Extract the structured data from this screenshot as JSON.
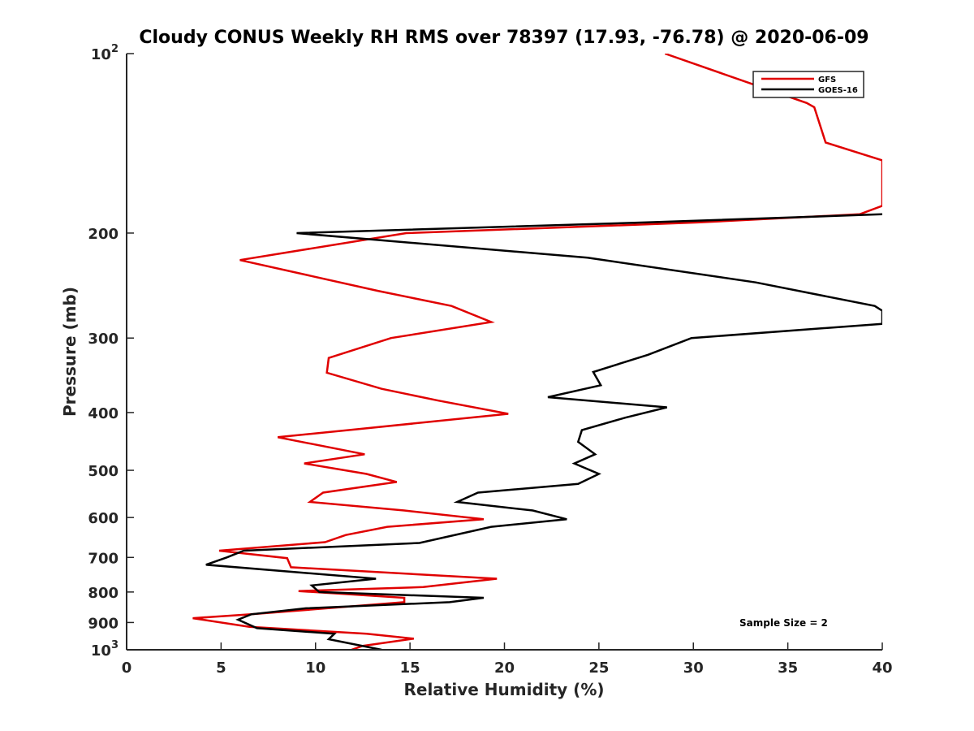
{
  "chart_data": {
    "type": "line",
    "title": "Cloudy CONUS Weekly RH RMS over 78397 (17.93, -76.78) @ 2020-06-09",
    "xlabel": "Relative Humidity (%)",
    "ylabel": "Pressure (mb)",
    "xlim": [
      0,
      40
    ],
    "ylim": [
      100,
      1000
    ],
    "yscale": "log",
    "yreversed": true,
    "grid": false,
    "legend_position": "top-right",
    "x_ticks": [
      "0",
      "5",
      "10",
      "15",
      "20",
      "25",
      "30",
      "35",
      "40"
    ],
    "y_ticks": [
      {
        "value": 100,
        "base": "10",
        "exp": "2"
      },
      {
        "value": 200,
        "label": "200"
      },
      {
        "value": 300,
        "label": "300"
      },
      {
        "value": 400,
        "label": "400"
      },
      {
        "value": 500,
        "label": "500"
      },
      {
        "value": 600,
        "label": "600"
      },
      {
        "value": 700,
        "label": "700"
      },
      {
        "value": 800,
        "label": "800"
      },
      {
        "value": 900,
        "label": "900"
      },
      {
        "value": 1000,
        "base": "10",
        "exp": "3"
      }
    ],
    "annotation": "Sample Size = 2",
    "series": [
      {
        "name": "GFS",
        "color": "#e00000",
        "points": [
          [
            28.5,
            100
          ],
          [
            36.0,
            121
          ],
          [
            36.4,
            123
          ],
          [
            37.0,
            141
          ],
          [
            40.0,
            151
          ],
          [
            40.0,
            180
          ],
          [
            38.8,
            186
          ],
          [
            30.2,
            192
          ],
          [
            14.8,
            200
          ],
          [
            6.0,
            222
          ],
          [
            13.3,
            250
          ],
          [
            17.2,
            265
          ],
          [
            19.3,
            282
          ],
          [
            14.0,
            300
          ],
          [
            10.7,
            324
          ],
          [
            10.6,
            343
          ],
          [
            13.5,
            365
          ],
          [
            16.5,
            382
          ],
          [
            20.2,
            402
          ],
          [
            12.4,
            426
          ],
          [
            8.0,
            440
          ],
          [
            12.6,
            470
          ],
          [
            9.4,
            487
          ],
          [
            12.7,
            507
          ],
          [
            14.3,
            523
          ],
          [
            10.4,
            545
          ],
          [
            9.7,
            565
          ],
          [
            14.7,
            584
          ],
          [
            18.9,
            604
          ],
          [
            13.8,
            622
          ],
          [
            11.6,
            642
          ],
          [
            10.5,
            660
          ],
          [
            4.9,
            682
          ],
          [
            8.5,
            702
          ],
          [
            8.7,
            727
          ],
          [
            19.6,
            760
          ],
          [
            15.7,
            785
          ],
          [
            9.1,
            797
          ],
          [
            14.7,
            818
          ],
          [
            14.7,
            832
          ],
          [
            6.6,
            872
          ],
          [
            3.5,
            885
          ],
          [
            6.5,
            915
          ],
          [
            12.7,
            940
          ],
          [
            15.2,
            958
          ],
          [
            12.5,
            985
          ],
          [
            11.9,
            1000
          ]
        ]
      },
      {
        "name": "GOES-16",
        "color": "#000000",
        "points": [
          [
            40.0,
            186
          ],
          [
            27.4,
            192
          ],
          [
            9.0,
            200
          ],
          [
            24.4,
            220
          ],
          [
            33.3,
            242
          ],
          [
            39.6,
            265
          ],
          [
            40.0,
            270
          ],
          [
            40.0,
            284
          ],
          [
            29.9,
            300
          ],
          [
            27.6,
            320
          ],
          [
            24.7,
            342
          ],
          [
            25.1,
            360
          ],
          [
            22.3,
            377
          ],
          [
            28.6,
            392
          ],
          [
            26.4,
            408
          ],
          [
            24.1,
            428
          ],
          [
            23.9,
            448
          ],
          [
            24.8,
            470
          ],
          [
            23.7,
            487
          ],
          [
            25.0,
            507
          ],
          [
            23.9,
            527
          ],
          [
            18.6,
            545
          ],
          [
            17.5,
            565
          ],
          [
            21.5,
            584
          ],
          [
            23.3,
            604
          ],
          [
            19.3,
            622
          ],
          [
            15.5,
            662
          ],
          [
            6.2,
            682
          ],
          [
            5.3,
            700
          ],
          [
            4.2,
            720
          ],
          [
            13.2,
            760
          ],
          [
            9.8,
            780
          ],
          [
            10.2,
            800
          ],
          [
            18.9,
            818
          ],
          [
            17.1,
            832
          ],
          [
            9.5,
            852
          ],
          [
            6.6,
            872
          ],
          [
            5.9,
            890
          ],
          [
            6.9,
            920
          ],
          [
            11.0,
            940
          ],
          [
            10.7,
            960
          ],
          [
            13.5,
            1000
          ]
        ]
      }
    ]
  }
}
